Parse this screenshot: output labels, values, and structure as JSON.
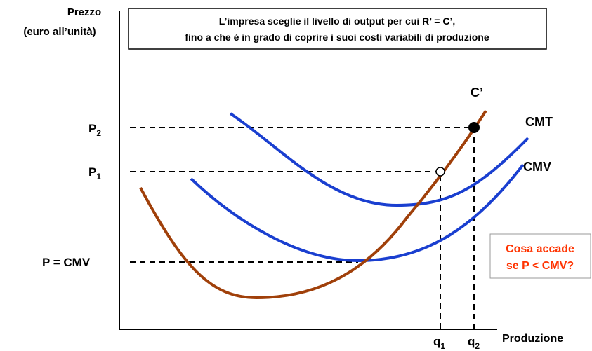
{
  "axes": {
    "y_label": [
      "Prezzo",
      "(euro all’unità)"
    ],
    "x_label": "Produzione"
  },
  "header": {
    "lines": [
      "L’impresa sceglie il livello di output per cui R’ = C’,",
      "fino a che è in grado di coprire i suoi costi variabili di produzione"
    ]
  },
  "curves": {
    "marginal_cost": "C’",
    "average_total_cost": "CMT",
    "average_variable_cost": "CMV"
  },
  "price_levels": [
    {
      "main": "P",
      "sub": "2"
    },
    {
      "main": "P",
      "sub": "1"
    },
    {
      "main": "P = CMV"
    }
  ],
  "quantities": [
    {
      "main": "q",
      "sub": "1"
    },
    {
      "main": "q",
      "sub": "2"
    }
  ],
  "question": [
    "Cosa accade",
    "se P < CMV?"
  ]
}
